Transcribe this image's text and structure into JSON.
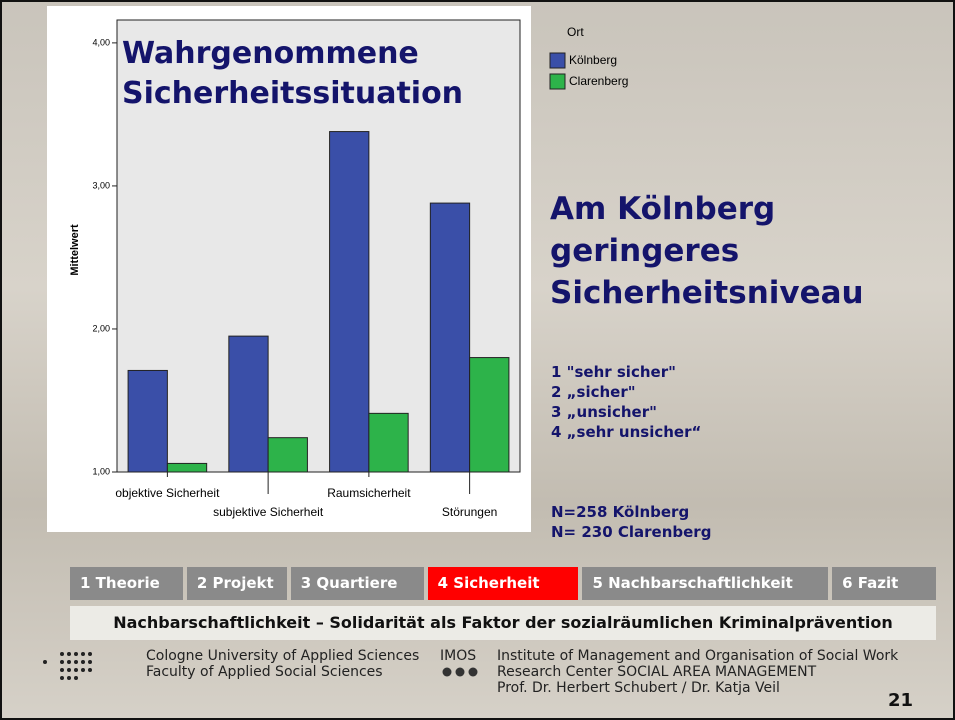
{
  "chart_data": {
    "type": "bar",
    "title": "Wahrgenommene Sicherheitssituation",
    "y_label": "Mittelwert",
    "legend_title": "Ort",
    "categories": [
      "objektive Sicherheit",
      "subjektive Sicherheit",
      "Raumsicherheit",
      "Störungen"
    ],
    "series": [
      {
        "name": "Kölnberg",
        "color": "#3a4fa8",
        "values": [
          1.71,
          1.95,
          3.38,
          2.88
        ]
      },
      {
        "name": "Clarenberg",
        "color": "#2db34a",
        "values": [
          1.06,
          1.24,
          1.41,
          1.8
        ]
      }
    ],
    "ylim": [
      1,
      4.16
    ],
    "yticks": [
      {
        "value": 1,
        "label": "1,00"
      },
      {
        "value": 2,
        "label": "2,00"
      },
      {
        "value": 3,
        "label": "3,00"
      },
      {
        "value": 4,
        "label": "4,00"
      }
    ]
  },
  "headline": "Am Kölnberg geringeres Sicherheitsniveau",
  "scale": [
    "1 \"sehr sicher\"",
    "2 „sicher\"",
    "3 „unsicher\"",
    "4 „sehr unsicher“"
  ],
  "sample": [
    "N=258 Kölnberg",
    "N= 230 Clarenberg"
  ],
  "nav": {
    "tabs": [
      "1 Theorie",
      "2 Projekt",
      "3 Quartiere",
      "4  Sicherheit",
      "5  Nachbarschaftlichkeit",
      "6 Fazit"
    ],
    "active": 3
  },
  "tagline": "Nachbarschaftlichkeit – Solidarität als Faktor der sozialräumlichen Kriminalprävention",
  "footer": {
    "left": [
      "Cologne University of Applied Sciences",
      "Faculty of Applied Social Sciences"
    ],
    "imos": "IMOS",
    "right": [
      "Institute of Management and Organisation of Social Work",
      "Research Center   SOCIAL AREA  MANAGEMENT",
      "Prof. Dr. Herbert Schubert / Dr. Katja Veil"
    ]
  },
  "page_number": "21"
}
